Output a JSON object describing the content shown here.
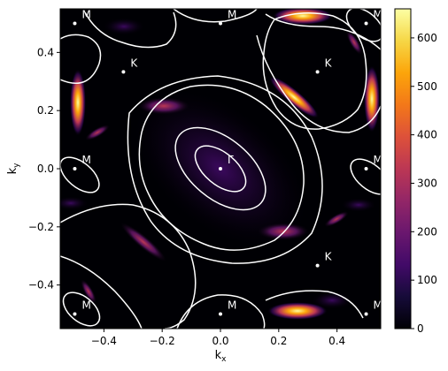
{
  "chart_data": {
    "type": "heatmap",
    "xlabel": "k",
    "xlabel_sub": "x",
    "ylabel": "k",
    "ylabel_sub": "y",
    "xlim": [
      -0.55,
      0.55
    ],
    "ylim": [
      -0.55,
      0.55
    ],
    "x_ticks": [
      -0.4,
      -0.2,
      0.0,
      0.2,
      0.4
    ],
    "x_tick_labels": [
      "−0.4",
      "−0.2",
      "0.0",
      "0.2",
      "0.4"
    ],
    "y_ticks": [
      -0.4,
      -0.2,
      0.0,
      0.2,
      0.4
    ],
    "y_tick_labels": [
      "−0.4",
      "−0.2",
      "0.0",
      "0.2",
      "0.4"
    ],
    "colorbar": {
      "colormap": "inferno",
      "range": [
        0,
        660
      ],
      "ticks": [
        0,
        100,
        200,
        300,
        400,
        500,
        600
      ],
      "tick_labels": [
        "0",
        "100",
        "200",
        "300",
        "400",
        "500",
        "600"
      ]
    },
    "high_symmetry_points": [
      {
        "label": "Γ",
        "x": 0.0,
        "y": 0.0
      },
      {
        "label": "K",
        "x": -0.333,
        "y": 0.333
      },
      {
        "label": "K",
        "x": 0.333,
        "y": 0.333
      },
      {
        "label": "K",
        "x": 0.333,
        "y": -0.333
      },
      {
        "label": "M",
        "x": -0.5,
        "y": 0.5
      },
      {
        "label": "M",
        "x": 0.0,
        "y": 0.5
      },
      {
        "label": "M",
        "x": 0.5,
        "y": 0.5
      },
      {
        "label": "M",
        "x": -0.5,
        "y": 0.0
      },
      {
        "label": "M",
        "x": 0.5,
        "y": 0.0
      },
      {
        "label": "M",
        "x": -0.5,
        "y": -0.5
      },
      {
        "label": "M",
        "x": 0.0,
        "y": -0.5
      },
      {
        "label": "M",
        "x": 0.5,
        "y": -0.5
      }
    ],
    "contour_color": "#ffffff",
    "background_color": "#000004"
  }
}
